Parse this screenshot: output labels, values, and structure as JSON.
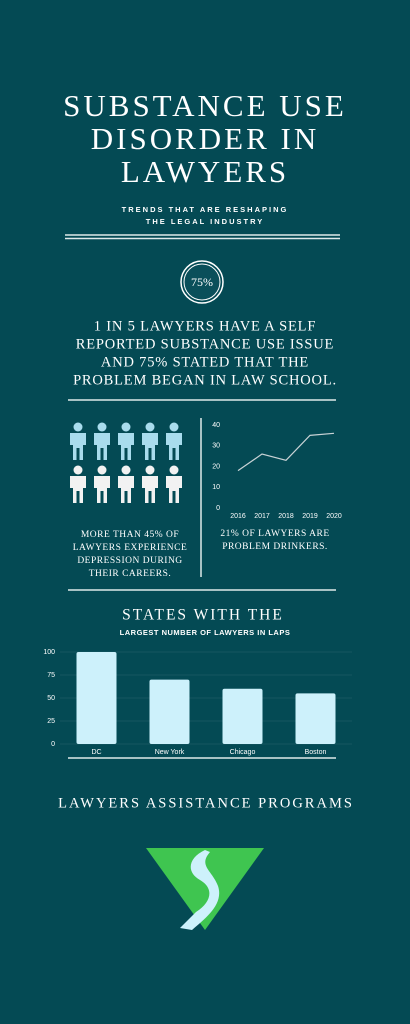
{
  "header": {
    "title_lines": [
      "SUBSTANCE USE",
      "DISORDER IN",
      "LAWYERS"
    ],
    "subtitle_lines": [
      "TRENDS THAT ARE RESHAPING",
      "THE LEGAL INDUSTRY"
    ]
  },
  "badge": "75%",
  "statement_lines": [
    "1 IN 5 LAWYERS HAVE A SELF",
    "REPORTED SUBSTANCE USE ISSUE",
    "AND 75% STATED THAT THE",
    "PROBLEM BEGAN IN LAW SCHOOL."
  ],
  "left_stat_lines": [
    "MORE THAN 45% OF",
    "LAWYERS EXPERIENCE",
    "DEPRESSION DURING",
    "THEIR CAREERS."
  ],
  "chart_data": [
    {
      "type": "line",
      "x": [
        2016,
        2017,
        2018,
        2019,
        2020
      ],
      "values": [
        18,
        26,
        23,
        35,
        36
      ],
      "color": "#c9d3d6",
      "xlim": [
        2016,
        2020
      ],
      "xticks": [
        2016,
        2017,
        2018,
        2019,
        2020
      ],
      "ylim": [
        0,
        40
      ],
      "yticks": [
        0,
        10,
        20,
        30,
        40
      ],
      "grid": false,
      "caption_lines": [
        "21% OF LAWYERS ARE",
        "PROBLEM DRINKERS."
      ]
    },
    {
      "type": "bar",
      "title": "STATES WITH THE",
      "subtitle": "LARGEST NUMBER OF LAWYERS IN LAPS",
      "categories": [
        "DC",
        "New York",
        "Chicago",
        "Boston"
      ],
      "values": [
        100,
        70,
        60,
        55
      ],
      "color": "#cdf1fb",
      "ylim": [
        0,
        100
      ],
      "yticks": [
        0,
        25,
        50,
        75,
        100
      ],
      "grid": true
    }
  ],
  "footer": "LAWYERS ASSISTANCE PROGRAMS"
}
